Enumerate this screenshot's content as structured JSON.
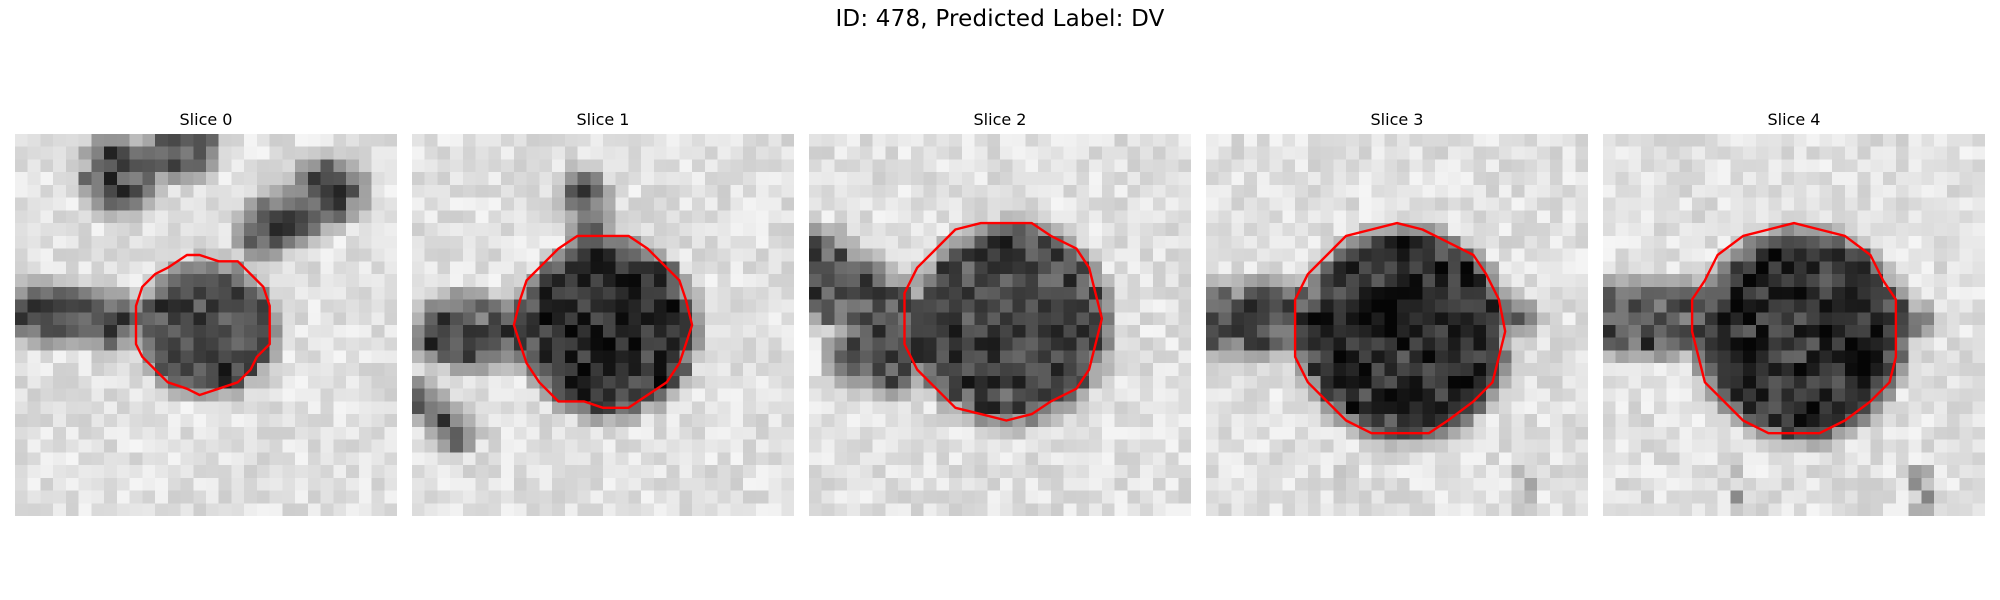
{
  "figure": {
    "title": "ID: 478, Predicted Label: DV"
  },
  "slices": [
    {
      "title": "Slice 0"
    },
    {
      "title": "Slice 1"
    },
    {
      "title": "Slice 2"
    },
    {
      "title": "Slice 3"
    },
    {
      "title": "Slice 4"
    }
  ],
  "colors": {
    "contour": "#ff0000",
    "background": "#ffffff",
    "colormap": "grayscale"
  }
}
